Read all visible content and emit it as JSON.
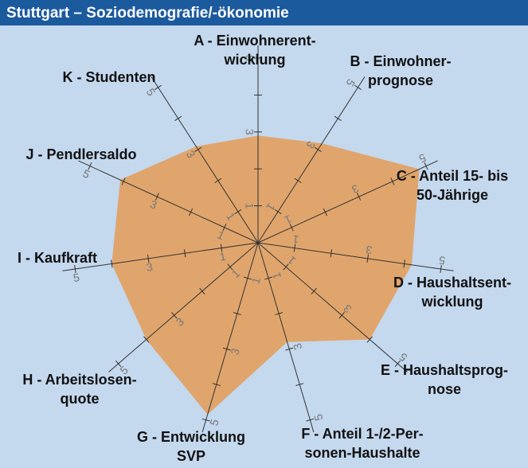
{
  "chart_data": {
    "type": "radar",
    "title": "Stuttgart – Soziodemografie/-ökonomie",
    "categories": [
      "A - Einwohnerent-\nwicklung",
      "B - Einwohner-\nprognose",
      "C - Anteil 15- bis\n50-Jährige",
      "D - Haushaltsent-\nwicklung",
      "E - Haushaltsprog-\nnose",
      "F - Anteil 1-/2-Per-\nsonen-Haushalte",
      "G - Entwicklung\nSVP",
      "H - Arbeitslosen-\nquote",
      "I - Kaufkraft",
      "J - Pendlersaldo",
      "K - Studenten"
    ],
    "values": [
      2.9,
      3.2,
      4.8,
      4.2,
      4.0,
      2.8,
      4.85,
      4.0,
      4.0,
      4.1,
      3.1
    ],
    "color": "#e0a56c",
    "rlim": [
      0,
      5
    ],
    "rticks": [
      1,
      3,
      5
    ],
    "minor_rticks": [
      2,
      4
    ]
  }
}
